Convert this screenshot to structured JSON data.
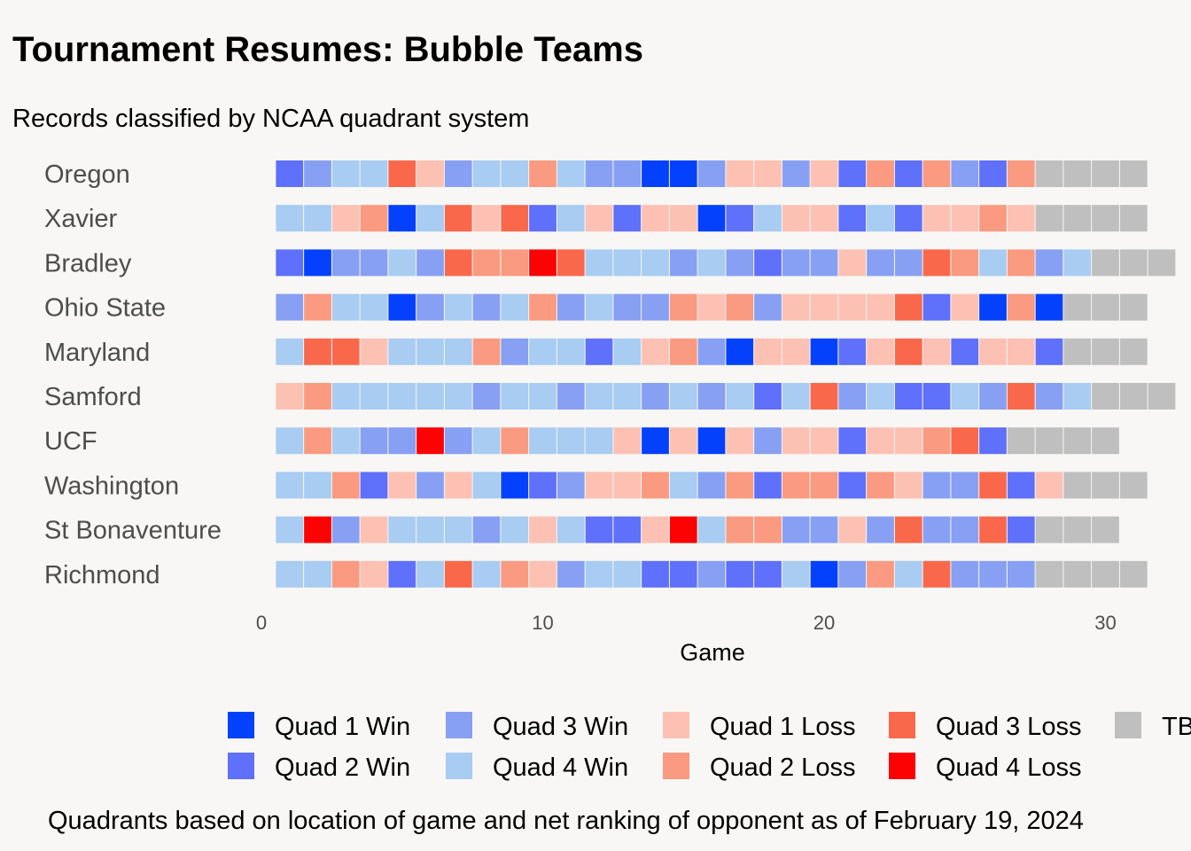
{
  "title": "Tournament Resumes: Bubble Teams",
  "subtitle": "Records classified by NCAA quadrant system",
  "caption": "Quadrants based on location of game and net ranking of opponent as of February 19, 2024",
  "chart_data": {
    "type": "heatmap",
    "xlabel": "Game",
    "xticks": [
      0,
      10,
      20,
      30
    ],
    "xlim": [
      0,
      31
    ],
    "legend_position": "bottom",
    "categories": [
      {
        "key": "Q1W",
        "label": "Quad 1 Win",
        "color": "#0341fd"
      },
      {
        "key": "Q2W",
        "label": "Quad 2 Win",
        "color": "#5f70fa"
      },
      {
        "key": "Q3W",
        "label": "Quad 3 Win",
        "color": "#87a0f3"
      },
      {
        "key": "Q4W",
        "label": "Quad 4 Win",
        "color": "#a8ccf2"
      },
      {
        "key": "Q1L",
        "label": "Quad 1 Loss",
        "color": "#fdc1b4"
      },
      {
        "key": "Q2L",
        "label": "Quad 2 Loss",
        "color": "#fa9a80"
      },
      {
        "key": "Q3L",
        "label": "Quad 3 Loss",
        "color": "#fa684c"
      },
      {
        "key": "Q4L",
        "label": "Quad 4 Loss",
        "color": "#fc0202"
      },
      {
        "key": "TBD",
        "label": "TBD",
        "color": "#bfbfbf"
      }
    ],
    "teams": [
      {
        "name": "Oregon",
        "games": [
          "Q2W",
          "Q3W",
          "Q4W",
          "Q4W",
          "Q3L",
          "Q1L",
          "Q3W",
          "Q4W",
          "Q4W",
          "Q2L",
          "Q4W",
          "Q3W",
          "Q3W",
          "Q1W",
          "Q1W",
          "Q3W",
          "Q1L",
          "Q1L",
          "Q3W",
          "Q1L",
          "Q2W",
          "Q2L",
          "Q2W",
          "Q2L",
          "Q3W",
          "Q2W",
          "Q2L",
          "TBD",
          "TBD",
          "TBD",
          "TBD"
        ]
      },
      {
        "name": "Xavier",
        "games": [
          "Q4W",
          "Q4W",
          "Q1L",
          "Q2L",
          "Q1W",
          "Q4W",
          "Q3L",
          "Q1L",
          "Q3L",
          "Q2W",
          "Q4W",
          "Q1L",
          "Q2W",
          "Q1L",
          "Q1L",
          "Q1W",
          "Q2W",
          "Q4W",
          "Q1L",
          "Q1L",
          "Q2W",
          "Q4W",
          "Q2W",
          "Q1L",
          "Q1L",
          "Q2L",
          "Q1L",
          "TBD",
          "TBD",
          "TBD",
          "TBD"
        ]
      },
      {
        "name": "Bradley",
        "games": [
          "Q2W",
          "Q1W",
          "Q3W",
          "Q3W",
          "Q4W",
          "Q3W",
          "Q3L",
          "Q2L",
          "Q2L",
          "Q4L",
          "Q3L",
          "Q4W",
          "Q4W",
          "Q4W",
          "Q3W",
          "Q4W",
          "Q3W",
          "Q2W",
          "Q3W",
          "Q3W",
          "Q1L",
          "Q3W",
          "Q3W",
          "Q3L",
          "Q2L",
          "Q4W",
          "Q2L",
          "Q3W",
          "Q4W",
          "TBD",
          "TBD",
          "TBD"
        ]
      },
      {
        "name": "Ohio State",
        "games": [
          "Q3W",
          "Q2L",
          "Q4W",
          "Q4W",
          "Q1W",
          "Q3W",
          "Q4W",
          "Q3W",
          "Q4W",
          "Q2L",
          "Q3W",
          "Q4W",
          "Q3W",
          "Q3W",
          "Q2L",
          "Q1L",
          "Q2L",
          "Q3W",
          "Q1L",
          "Q1L",
          "Q1L",
          "Q1L",
          "Q3L",
          "Q2W",
          "Q1L",
          "Q1W",
          "Q2L",
          "Q1W",
          "TBD",
          "TBD",
          "TBD"
        ]
      },
      {
        "name": "Maryland",
        "games": [
          "Q4W",
          "Q3L",
          "Q3L",
          "Q1L",
          "Q4W",
          "Q4W",
          "Q4W",
          "Q2L",
          "Q3W",
          "Q4W",
          "Q4W",
          "Q2W",
          "Q4W",
          "Q1L",
          "Q2L",
          "Q3W",
          "Q1W",
          "Q1L",
          "Q1L",
          "Q1W",
          "Q2W",
          "Q1L",
          "Q3L",
          "Q1L",
          "Q2W",
          "Q1L",
          "Q1L",
          "Q2W",
          "TBD",
          "TBD",
          "TBD"
        ]
      },
      {
        "name": "Samford",
        "games": [
          "Q1L",
          "Q2L",
          "Q4W",
          "Q4W",
          "Q4W",
          "Q4W",
          "Q4W",
          "Q3W",
          "Q4W",
          "Q4W",
          "Q3W",
          "Q4W",
          "Q4W",
          "Q3W",
          "Q4W",
          "Q3W",
          "Q4W",
          "Q2W",
          "Q4W",
          "Q3L",
          "Q3W",
          "Q4W",
          "Q2W",
          "Q2W",
          "Q4W",
          "Q3W",
          "Q3L",
          "Q3W",
          "Q4W",
          "TBD",
          "TBD",
          "TBD"
        ]
      },
      {
        "name": "UCF",
        "games": [
          "Q4W",
          "Q2L",
          "Q4W",
          "Q3W",
          "Q3W",
          "Q4L",
          "Q3W",
          "Q4W",
          "Q2L",
          "Q4W",
          "Q4W",
          "Q4W",
          "Q1L",
          "Q1W",
          "Q1L",
          "Q1W",
          "Q1L",
          "Q3W",
          "Q1L",
          "Q1L",
          "Q2W",
          "Q1L",
          "Q1L",
          "Q2L",
          "Q3L",
          "Q2W",
          "TBD",
          "TBD",
          "TBD",
          "TBD"
        ]
      },
      {
        "name": "Washington",
        "games": [
          "Q4W",
          "Q4W",
          "Q2L",
          "Q2W",
          "Q1L",
          "Q3W",
          "Q1L",
          "Q4W",
          "Q1W",
          "Q2W",
          "Q3W",
          "Q1L",
          "Q1L",
          "Q2L",
          "Q4W",
          "Q3W",
          "Q2L",
          "Q2W",
          "Q2L",
          "Q2L",
          "Q2W",
          "Q2L",
          "Q1L",
          "Q3W",
          "Q3W",
          "Q3L",
          "Q2W",
          "Q1L",
          "TBD",
          "TBD",
          "TBD"
        ]
      },
      {
        "name": "St Bonaventure",
        "games": [
          "Q4W",
          "Q4L",
          "Q3W",
          "Q1L",
          "Q4W",
          "Q4W",
          "Q4W",
          "Q3W",
          "Q4W",
          "Q1L",
          "Q4W",
          "Q2W",
          "Q2W",
          "Q1L",
          "Q4L",
          "Q4W",
          "Q2L",
          "Q2L",
          "Q3W",
          "Q3W",
          "Q1L",
          "Q3W",
          "Q3L",
          "Q3W",
          "Q3W",
          "Q3L",
          "Q2W",
          "TBD",
          "TBD",
          "TBD"
        ]
      },
      {
        "name": "Richmond",
        "games": [
          "Q4W",
          "Q4W",
          "Q2L",
          "Q1L",
          "Q2W",
          "Q4W",
          "Q3L",
          "Q4W",
          "Q2L",
          "Q1L",
          "Q3W",
          "Q4W",
          "Q4W",
          "Q2W",
          "Q2W",
          "Q3W",
          "Q2W",
          "Q2W",
          "Q4W",
          "Q1W",
          "Q3W",
          "Q2L",
          "Q4W",
          "Q3L",
          "Q3W",
          "Q3W",
          "Q3W",
          "TBD",
          "TBD",
          "TBD",
          "TBD"
        ]
      }
    ]
  }
}
